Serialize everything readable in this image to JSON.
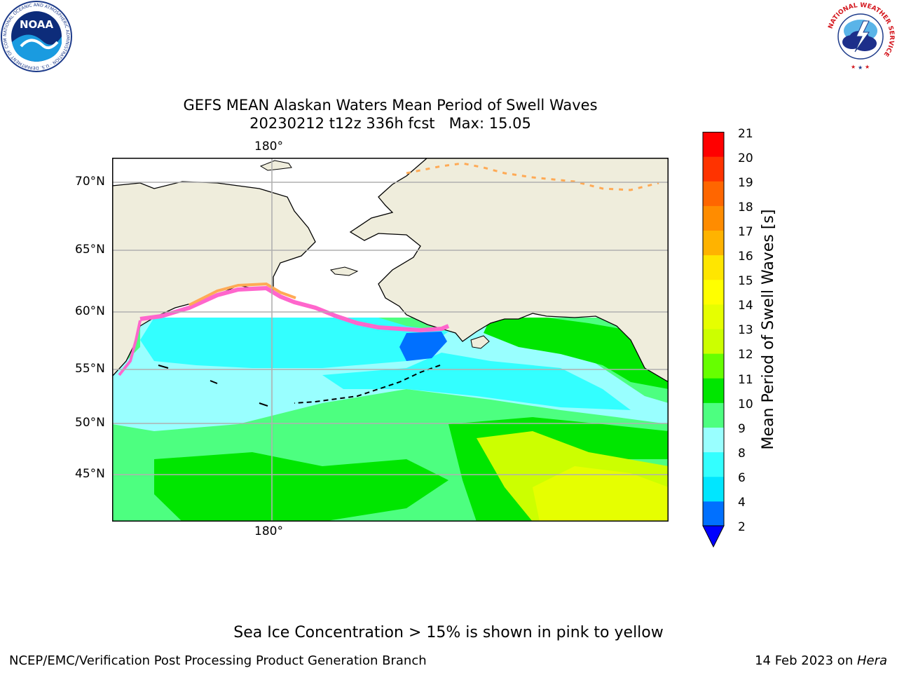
{
  "header": {
    "title_line1": "GEFS MEAN Alaskan Waters Mean Period of Swell Waves",
    "title_line2": "20230212 t12z 336h fcst   Max: 15.05"
  },
  "logos": {
    "noaa_text": "NOAA",
    "noaa_ring_text": "NATIONAL OCEANIC AND ATMOSPHERIC ADMINISTRATION · U.S. DEPARTMENT OF COMMERCE",
    "nws_ring_text": "NATIONAL WEATHER SERVICE"
  },
  "map": {
    "lon_label_top": "180°",
    "lon_label_bottom": "180°",
    "lat_labels": [
      "70°N",
      "65°N",
      "60°N",
      "55°N",
      "50°N",
      "45°N"
    ],
    "colors": {
      "land": "#efeddc",
      "sea_ice_pink": "#ff66cc",
      "sea_ice_orange": "#ffaa55",
      "grid": "#b0b0b0"
    }
  },
  "colorbar": {
    "label": "Mean Period of Swell Waves [s]",
    "ticks": [
      "21",
      "20",
      "19",
      "18",
      "17",
      "16",
      "15",
      "14",
      "13",
      "12",
      "11",
      "10",
      "9",
      "8",
      "6",
      "4",
      "2"
    ],
    "colors_low_to_high": [
      "#0070ff",
      "#00e6ff",
      "#33ffff",
      "#99ffff",
      "#4dff80",
      "#00e600",
      "#66ff00",
      "#ccff00",
      "#e6ff00",
      "#ffff00",
      "#ffe600",
      "#ffb300",
      "#ff8c00",
      "#ff6600",
      "#ff3300",
      "#ff0000"
    ],
    "under_color": "#0000ff"
  },
  "note": "Sea Ice Concentration > 15% is shown in pink to yellow",
  "footer": {
    "left": "NCEP/EMC/Verification Post Processing Product Generation Branch",
    "date": "14 Feb 2023 on ",
    "machine": "Hera"
  }
}
